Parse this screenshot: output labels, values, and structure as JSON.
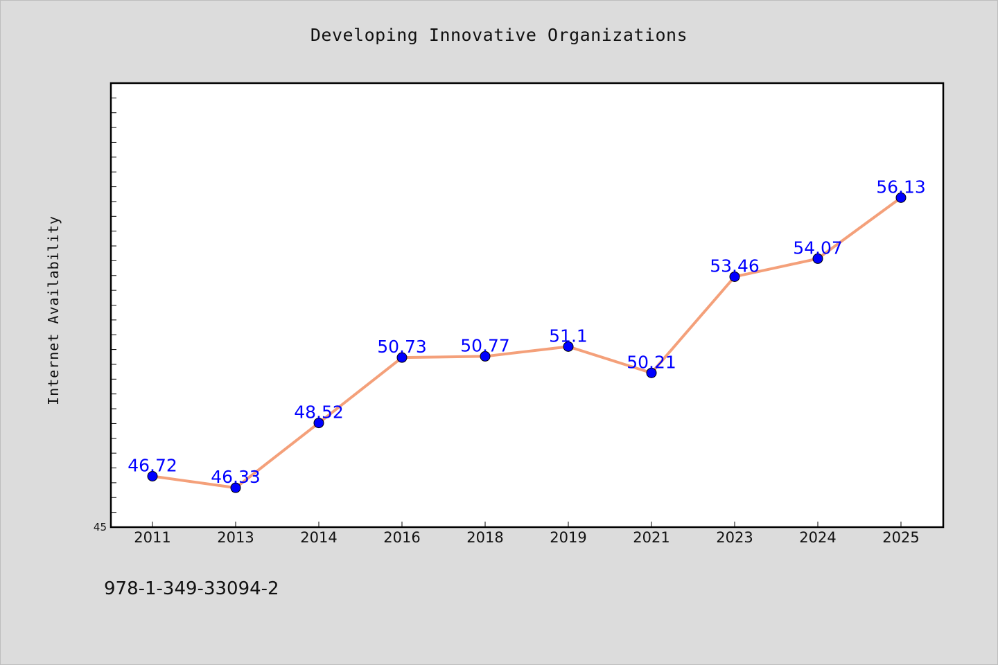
{
  "chart_data": {
    "type": "line",
    "title": "Developing Innovative Organizations",
    "ylabel": "Internet Availability",
    "xlabel": "",
    "categories": [
      "2011",
      "2013",
      "2014",
      "2016",
      "2018",
      "2019",
      "2021",
      "2023",
      "2024",
      "2025"
    ],
    "values": [
      46.72,
      46.33,
      48.52,
      50.73,
      50.77,
      51.1,
      50.21,
      53.46,
      54.07,
      56.13
    ],
    "data_labels": [
      "46.72",
      "46.33",
      "48.52",
      "50.73",
      "50.77",
      "51.1",
      "50.21",
      "53.46",
      "54.07",
      "56.13"
    ],
    "ylim": [
      45,
      60
    ],
    "y_tick_labels": [
      "45"
    ],
    "grid": false,
    "colors": {
      "line": "#f4a07a",
      "marker": "#0000ff",
      "label": "#0000ff",
      "plot_bg": "#ffffff",
      "page_bg": "#dcdcdc"
    }
  },
  "footer": {
    "isbn": "978-1-349-33094-2"
  }
}
